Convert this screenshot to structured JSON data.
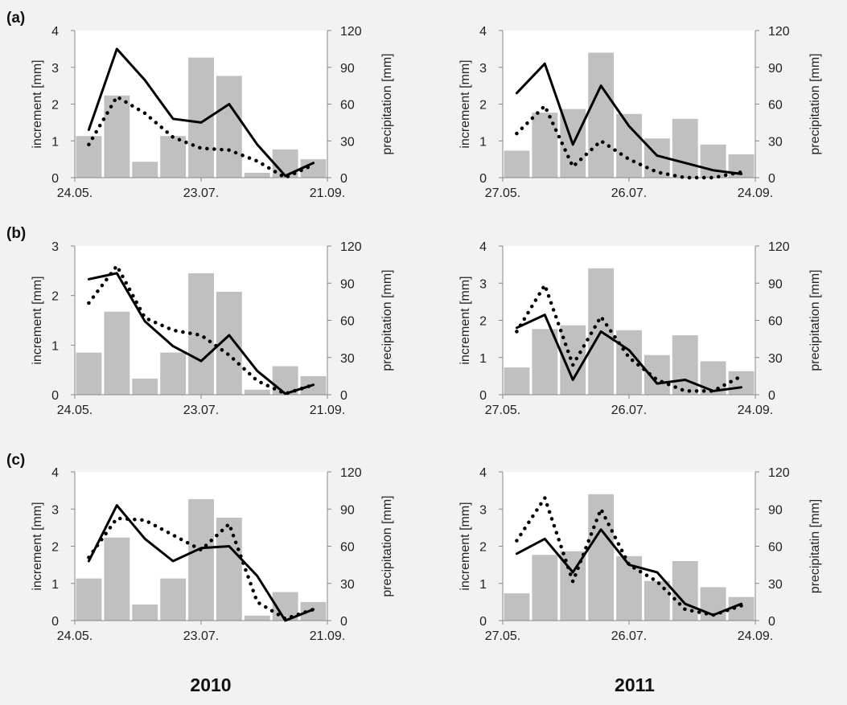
{
  "colors": {
    "background": "#f2f2f2",
    "plot_background": "#ffffff",
    "bar": "#c0c0c0",
    "axis": "#888888",
    "line": "#000000",
    "text": "#222222"
  },
  "year_labels": [
    "2010",
    "2011"
  ],
  "chart_data": [
    {
      "type": "bar+line",
      "panel": "(a)",
      "year": "2010",
      "ylabel_left": "increment [mm]",
      "ylabel_right": "precipitation [mm]",
      "ylim_left": [
        0,
        4
      ],
      "yticks_left": [
        0,
        1,
        2,
        3,
        4
      ],
      "ylim_right": [
        0,
        120
      ],
      "yticks_right": [
        0,
        30,
        60,
        90,
        120
      ],
      "xticklabels": [
        "24.05.",
        "23.07.",
        "21.09."
      ],
      "bars": [
        34,
        67,
        13,
        34,
        98,
        83,
        4,
        23,
        15
      ],
      "series": [
        {
          "style": "solid",
          "values": [
            1.3,
            3.5,
            2.65,
            1.6,
            1.5,
            2.0,
            0.9,
            0.05,
            0.4
          ]
        },
        {
          "style": "dotted",
          "values": [
            0.9,
            2.2,
            1.75,
            1.1,
            0.8,
            0.75,
            0.45,
            0.0,
            0.35
          ]
        }
      ]
    },
    {
      "type": "bar+line",
      "panel": "",
      "year": "2011",
      "ylabel_left": "increment [mm]",
      "ylabel_right": "precipitation [mm]",
      "ylim_left": [
        0,
        4
      ],
      "yticks_left": [
        0,
        1,
        2,
        3,
        4
      ],
      "ylim_right": [
        0,
        120
      ],
      "yticks_right": [
        0,
        30,
        60,
        90,
        120
      ],
      "xticklabels": [
        "27.05.",
        "26.07.",
        "24.09."
      ],
      "bars": [
        22,
        53,
        56,
        102,
        52,
        32,
        48,
        27,
        19
      ],
      "series": [
        {
          "style": "solid",
          "values": [
            2.3,
            3.1,
            0.9,
            2.5,
            1.4,
            0.6,
            0.4,
            0.2,
            0.1
          ]
        },
        {
          "style": "dotted",
          "values": [
            1.2,
            1.95,
            0.3,
            1.0,
            0.5,
            0.15,
            0.0,
            0.0,
            0.15
          ]
        }
      ]
    },
    {
      "type": "bar+line",
      "panel": "(b)",
      "year": "2010",
      "ylabel_left": "increment [mm]",
      "ylabel_right": "precipitation [mm]",
      "ylim_left": [
        0,
        3
      ],
      "yticks_left": [
        0,
        1,
        2,
        3
      ],
      "ylim_right": [
        0,
        120
      ],
      "yticks_right": [
        0,
        30,
        60,
        90,
        120
      ],
      "xticklabels": [
        "24.05.",
        "23.07.",
        "21.09."
      ],
      "bars": [
        34,
        67,
        13,
        34,
        98,
        83,
        4,
        23,
        15
      ],
      "series": [
        {
          "style": "solid",
          "values": [
            2.33,
            2.45,
            1.48,
            0.98,
            0.68,
            1.2,
            0.48,
            0.02,
            0.2
          ]
        },
        {
          "style": "dotted",
          "values": [
            1.85,
            2.6,
            1.55,
            1.3,
            1.2,
            0.8,
            0.28,
            0.02,
            0.2
          ]
        }
      ]
    },
    {
      "type": "bar+line",
      "panel": "",
      "year": "2011",
      "ylabel_left": "increment [mm]",
      "ylabel_right": "precipitation [mm]",
      "ylim_left": [
        0,
        4
      ],
      "yticks_left": [
        0,
        1,
        2,
        3,
        4
      ],
      "ylim_right": [
        0,
        120
      ],
      "yticks_right": [
        0,
        30,
        60,
        90,
        120
      ],
      "xticklabels": [
        "27.05.",
        "26.07.",
        "24.09."
      ],
      "bars": [
        22,
        53,
        56,
        102,
        52,
        32,
        48,
        27,
        19
      ],
      "series": [
        {
          "style": "solid",
          "values": [
            1.8,
            2.15,
            0.4,
            1.7,
            1.2,
            0.3,
            0.4,
            0.1,
            0.2
          ]
        },
        {
          "style": "dotted",
          "values": [
            1.7,
            2.95,
            0.8,
            2.1,
            1.0,
            0.4,
            0.1,
            0.1,
            0.5
          ]
        }
      ]
    },
    {
      "type": "bar+line",
      "panel": "(c)",
      "year": "2010",
      "ylabel_left": "increment [mm]",
      "ylabel_right": "precipitation [mm]",
      "ylim_left": [
        0,
        4
      ],
      "yticks_left": [
        0,
        1,
        2,
        3,
        4
      ],
      "ylim_right": [
        0,
        120
      ],
      "yticks_right": [
        0,
        30,
        60,
        90,
        120
      ],
      "xticklabels": [
        "24.05.",
        "23.07.",
        "21.09."
      ],
      "bars": [
        34,
        67,
        13,
        34,
        98,
        83,
        4,
        23,
        15
      ],
      "series": [
        {
          "style": "solid",
          "values": [
            1.6,
            3.1,
            2.2,
            1.6,
            1.95,
            2.0,
            1.2,
            0.0,
            0.3
          ]
        },
        {
          "style": "dotted",
          "values": [
            1.7,
            2.75,
            2.7,
            2.3,
            1.9,
            2.6,
            0.5,
            0.05,
            0.3
          ]
        }
      ]
    },
    {
      "type": "bar+line",
      "panel": "",
      "year": "2011",
      "ylabel_left": "increment [mm]",
      "ylabel_right": "precipitatin [mm]",
      "ylim_left": [
        0,
        4
      ],
      "yticks_left": [
        0,
        1,
        2,
        3,
        4
      ],
      "ylim_right": [
        0,
        120
      ],
      "yticks_right": [
        0,
        30,
        60,
        90,
        120
      ],
      "xticklabels": [
        "27.05.",
        "26.07.",
        "24.09."
      ],
      "bars": [
        22,
        53,
        56,
        102,
        52,
        32,
        48,
        27,
        19
      ],
      "series": [
        {
          "style": "solid",
          "values": [
            1.8,
            2.2,
            1.3,
            2.45,
            1.5,
            1.3,
            0.45,
            0.15,
            0.45
          ]
        },
        {
          "style": "dotted",
          "values": [
            2.15,
            3.3,
            1.05,
            3.0,
            1.5,
            1.05,
            0.3,
            0.15,
            0.4
          ]
        }
      ]
    }
  ]
}
